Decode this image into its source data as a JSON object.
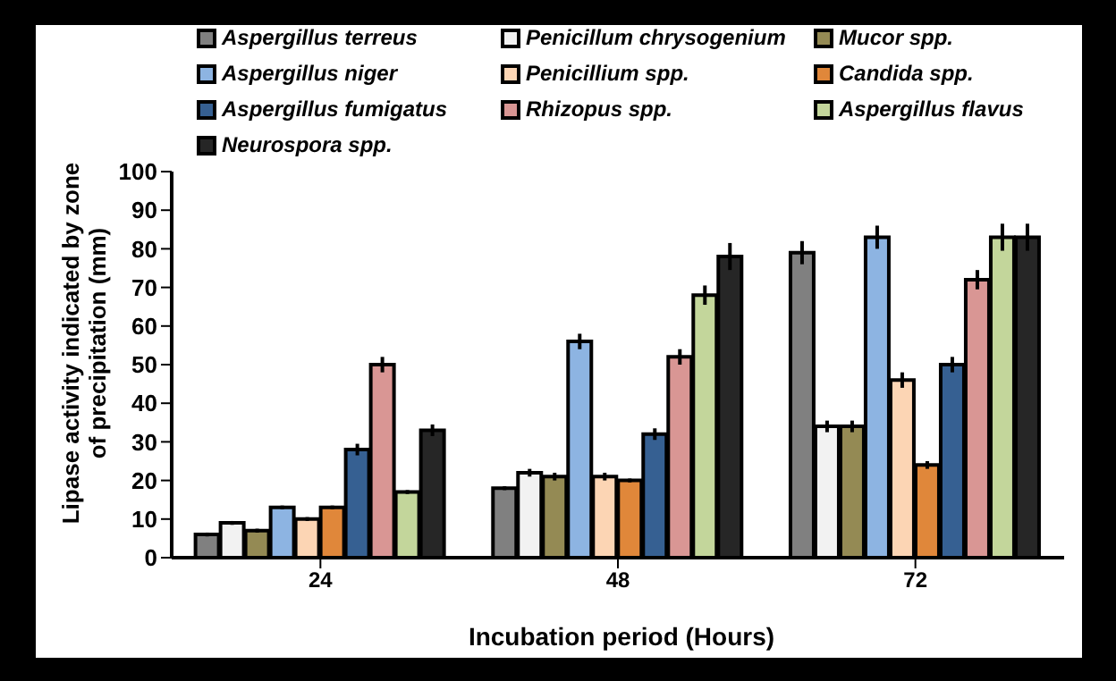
{
  "chart_data": {
    "type": "bar",
    "xlabel": "Incubation period (Hours)",
    "ylabel": "Lipase activity indicated by zone of precipitation (mm)",
    "categories": [
      "24",
      "48",
      "72"
    ],
    "series": [
      {
        "name": "Aspergillus terreus",
        "color": "#808080",
        "values": [
          6,
          18,
          79
        ],
        "errors": [
          0.5,
          0.5,
          3
        ]
      },
      {
        "name": "Penicillum chrysogenium",
        "color": "#f2f2f2",
        "values": [
          9,
          22,
          34
        ],
        "errors": [
          0.5,
          1,
          1.5
        ]
      },
      {
        "name": "Mucor spp.",
        "color": "#948a54",
        "values": [
          7,
          21,
          34
        ],
        "errors": [
          0.5,
          1,
          1.5
        ]
      },
      {
        "name": "Aspergillus niger",
        "color": "#8db4e2",
        "values": [
          13,
          56,
          83
        ],
        "errors": [
          0.5,
          2,
          3
        ]
      },
      {
        "name": "Penicillium spp.",
        "color": "#fcd5b4",
        "values": [
          10,
          21,
          46
        ],
        "errors": [
          0.5,
          1,
          2
        ]
      },
      {
        "name": "Candida spp.",
        "color": "#e0873a",
        "values": [
          13,
          20,
          24
        ],
        "errors": [
          0.5,
          0.5,
          1
        ]
      },
      {
        "name": "Aspergillus fumigatus",
        "color": "#366092",
        "values": [
          28,
          32,
          50
        ],
        "errors": [
          1.5,
          1.5,
          2
        ]
      },
      {
        "name": "Rhizopus spp.",
        "color": "#d99694",
        "values": [
          50,
          52,
          72
        ],
        "errors": [
          2,
          2,
          2.5
        ]
      },
      {
        "name": "Aspergillus flavus",
        "color": "#c3d69b",
        "values": [
          17,
          68,
          83
        ],
        "errors": [
          0.5,
          2.5,
          3.5
        ]
      },
      {
        "name": "Neurospora spp.",
        "color": "#262626",
        "values": [
          33,
          78,
          83
        ],
        "errors": [
          1.5,
          3.5,
          3.5
        ]
      }
    ],
    "ylim": [
      0,
      100
    ],
    "yticks": [
      0,
      10,
      20,
      30,
      40,
      50,
      60,
      70,
      80,
      90,
      100
    ],
    "grid": false,
    "legend": "top"
  }
}
